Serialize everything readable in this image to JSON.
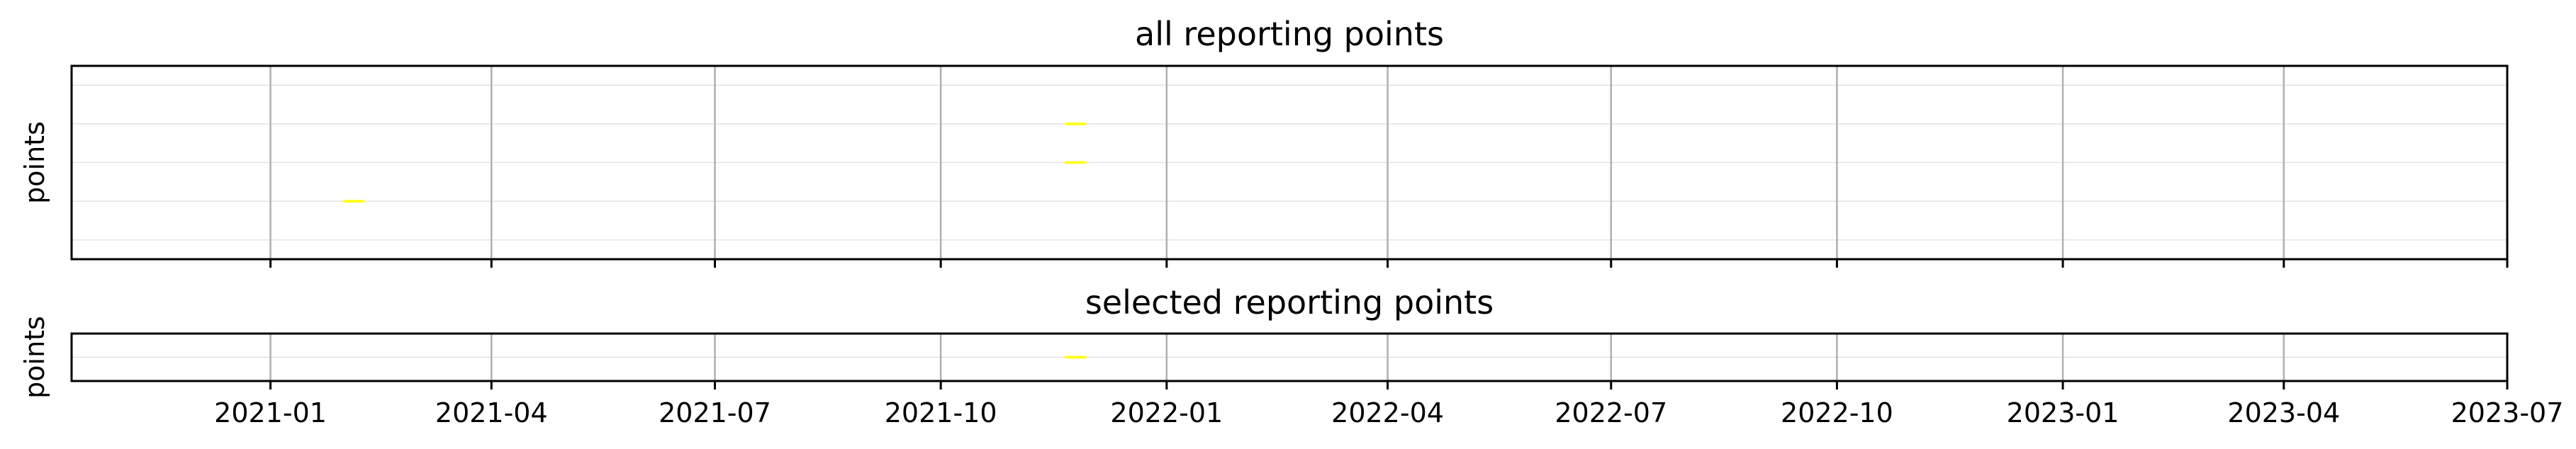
{
  "colors": {
    "marker": "#ffff00",
    "axis": "#000000"
  },
  "chart_data": [
    {
      "type": "scatter",
      "title": "all reporting points",
      "ylabel": "points",
      "xlim": [
        "2020-10-12",
        "2023-07-01"
      ],
      "ylim": [
        -0.5,
        4.5
      ],
      "ygrid": [
        0,
        1,
        2,
        3,
        4
      ],
      "x_ticks": [
        "2021-01",
        "2021-04",
        "2021-07",
        "2021-10",
        "2022-01",
        "2022-04",
        "2022-07",
        "2022-10",
        "2023-01",
        "2023-04",
        "2023-07"
      ],
      "marker": "hline",
      "points": [
        {
          "x": "2021-02-04",
          "y": 1
        },
        {
          "x": "2021-11-25",
          "y": 2
        },
        {
          "x": "2021-11-25",
          "y": 3
        }
      ]
    },
    {
      "type": "scatter",
      "title": "selected reporting points",
      "ylabel": "points",
      "xlim": [
        "2020-10-12",
        "2023-07-01"
      ],
      "ylim": [
        -0.5,
        0.5
      ],
      "ygrid": [
        0
      ],
      "x_ticks": [
        "2021-01",
        "2021-04",
        "2021-07",
        "2021-10",
        "2022-01",
        "2022-04",
        "2022-07",
        "2022-10",
        "2023-01",
        "2023-04",
        "2023-07"
      ],
      "marker": "hline",
      "points": [
        {
          "x": "2021-11-25",
          "y": 0
        }
      ]
    }
  ]
}
